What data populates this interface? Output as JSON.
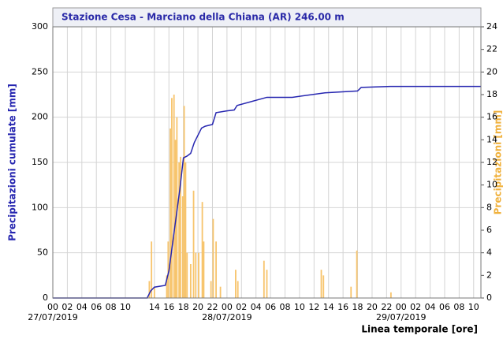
{
  "chart_data": {
    "type": "combo",
    "title": "Stazione Cesa - Marciano della Chiana (AR) 246.00 m",
    "y_label": "Precipitazioni cumulate [mm]",
    "y2_label": "Precipitazioni [mm]",
    "x_label": "Linea temporale [ore]",
    "xlim": [
      0,
      59
    ],
    "xticks": [
      {
        "value": 0,
        "label": "00"
      },
      {
        "value": 2,
        "label": "02"
      },
      {
        "value": 4,
        "label": "04"
      },
      {
        "value": 6,
        "label": "06"
      },
      {
        "value": 8,
        "label": "08"
      },
      {
        "value": 10,
        "label": "10"
      },
      {
        "value": 14,
        "label": "14"
      },
      {
        "value": 16,
        "label": "16"
      },
      {
        "value": 18,
        "label": "18"
      },
      {
        "value": 20,
        "label": "20"
      },
      {
        "value": 22,
        "label": "22"
      },
      {
        "value": 24,
        "label": "00"
      },
      {
        "value": 26,
        "label": "02"
      },
      {
        "value": 28,
        "label": "04"
      },
      {
        "value": 30,
        "label": "06"
      },
      {
        "value": 32,
        "label": "08"
      },
      {
        "value": 34,
        "label": "10"
      },
      {
        "value": 36,
        "label": "12"
      },
      {
        "value": 38,
        "label": "14"
      },
      {
        "value": 40,
        "label": "16"
      },
      {
        "value": 42,
        "label": "18"
      },
      {
        "value": 44,
        "label": "20"
      },
      {
        "value": 46,
        "label": "22"
      },
      {
        "value": 48,
        "label": "00"
      },
      {
        "value": 50,
        "label": "02"
      },
      {
        "value": 52,
        "label": "04"
      },
      {
        "value": 54,
        "label": "06"
      },
      {
        "value": 56,
        "label": "08"
      },
      {
        "value": 58,
        "label": "10"
      }
    ],
    "x_date_labels": [
      {
        "value": 0,
        "label": "27/07/2019"
      },
      {
        "value": 24,
        "label": "28/07/2019"
      },
      {
        "value": 48,
        "label": "29/07/2019"
      }
    ],
    "ylim": [
      0,
      300
    ],
    "yticks": [
      0,
      50,
      100,
      150,
      200,
      250,
      300
    ],
    "y2lim": [
      0,
      24
    ],
    "y2ticks": [
      0,
      2,
      4,
      6,
      8,
      10,
      12,
      14,
      16,
      18,
      20,
      22,
      24
    ],
    "grid": true,
    "series": [
      {
        "type": "line",
        "axis": "y",
        "color": "#2626b0",
        "x": [
          0,
          13,
          13.5,
          14,
          15.5,
          16,
          16.5,
          17,
          17.5,
          18,
          18.5,
          19,
          19.5,
          20,
          20.5,
          21,
          22,
          22.5,
          24,
          25,
          25.4,
          29.5,
          33,
          37.5,
          42,
          42.5,
          46.5,
          59
        ],
        "values": [
          0,
          0,
          8,
          12,
          14,
          30,
          60,
          90,
          120,
          155,
          157,
          160,
          172,
          180,
          188,
          190,
          192,
          205,
          207,
          208,
          213,
          222,
          222,
          227,
          229,
          233,
          234,
          234
        ]
      },
      {
        "type": "bar",
        "axis": "y2",
        "color": "#f7c46c",
        "x": [
          13.3,
          13.6,
          14.0,
          15.7,
          15.9,
          16.2,
          16.4,
          16.7,
          16.9,
          17.1,
          17.4,
          17.6,
          17.9,
          18.1,
          18.3,
          18.5,
          19.0,
          19.4,
          19.7,
          20.1,
          20.6,
          20.8,
          21.8,
          22.1,
          22.5,
          23.1,
          25.2,
          25.5,
          29.1,
          29.5,
          37.0,
          37.3,
          41.1,
          41.9,
          46.6
        ],
        "values": [
          1.5,
          5,
          1,
          2,
          5,
          15,
          17.7,
          18,
          14,
          16,
          12,
          12.5,
          9,
          17,
          12,
          4,
          3,
          9.5,
          4,
          4,
          8.5,
          5,
          1.5,
          7,
          5,
          1,
          2.5,
          1.5,
          3.3,
          2.5,
          2.5,
          2,
          1,
          4.2,
          0.5
        ]
      }
    ]
  }
}
